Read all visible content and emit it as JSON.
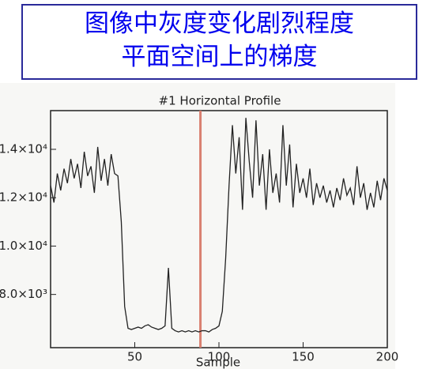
{
  "header": {
    "lines": [
      "图像中灰度变化剧烈程度",
      "平面空间上的梯度"
    ]
  },
  "chart_data": {
    "type": "line",
    "title": "#1 Horizontal Profile",
    "x_label": "Sample",
    "x": [
      0,
      2,
      4,
      6,
      8,
      10,
      12,
      14,
      16,
      18,
      20,
      22,
      24,
      26,
      28,
      30,
      32,
      34,
      36,
      38,
      40,
      42,
      44,
      46,
      48,
      50,
      52,
      54,
      56,
      58,
      60,
      62,
      64,
      66,
      68,
      70,
      72,
      74,
      76,
      78,
      80,
      82,
      84,
      86,
      88,
      90,
      92,
      94,
      96,
      98,
      100,
      102,
      104,
      106,
      108,
      110,
      112,
      114,
      116,
      118,
      120,
      122,
      124,
      126,
      128,
      130,
      132,
      134,
      136,
      138,
      140,
      142,
      144,
      146,
      148,
      150,
      152,
      154,
      156,
      158,
      160,
      162,
      164,
      166,
      168,
      170,
      172,
      174,
      176,
      178,
      180,
      182,
      184,
      186,
      188,
      190,
      192,
      194,
      196,
      198,
      200
    ],
    "series": [
      {
        "name": "Profile",
        "color": "#222222",
        "values": [
          12500,
          11800,
          13000,
          12300,
          13200,
          12600,
          13600,
          12800,
          13400,
          12400,
          13900,
          12900,
          13300,
          12200,
          14100,
          12700,
          13600,
          12500,
          13800,
          13000,
          12900,
          11000,
          7500,
          6600,
          6550,
          6600,
          6650,
          6600,
          6700,
          6750,
          6650,
          6600,
          6550,
          6600,
          6700,
          9100,
          6600,
          6500,
          6450,
          6500,
          6450,
          6500,
          6450,
          6500,
          6450,
          6500,
          6500,
          6450,
          6550,
          6600,
          6700,
          7300,
          9500,
          12500,
          15000,
          13000,
          14500,
          11500,
          15300,
          13500,
          12000,
          15200,
          12500,
          13800,
          11500,
          14000,
          12200,
          13000,
          11800,
          15000,
          12500,
          14200,
          11600,
          13400,
          12200,
          12800,
          12000,
          13200,
          11700,
          12600,
          12000,
          12500,
          11800,
          12300,
          11600,
          12400,
          11900,
          12800,
          12100,
          12400,
          11700,
          13300,
          12000,
          12600,
          11500,
          12200,
          11600,
          12700,
          11900,
          12800,
          12300
        ]
      }
    ],
    "marker_x": 89,
    "marker_color": "#d98070",
    "xlim": [
      0,
      200
    ],
    "xticks": [
      50,
      100,
      150,
      200
    ],
    "ylim": [
      5800,
      15600
    ],
    "yticks": [
      {
        "value": 8000,
        "label": "8.0×10³"
      },
      {
        "value": 10000,
        "label": "1.0×10⁴"
      },
      {
        "value": 12000,
        "label": "1.2×10⁴"
      },
      {
        "value": 14000,
        "label": "1.4×10⁴"
      }
    ]
  }
}
